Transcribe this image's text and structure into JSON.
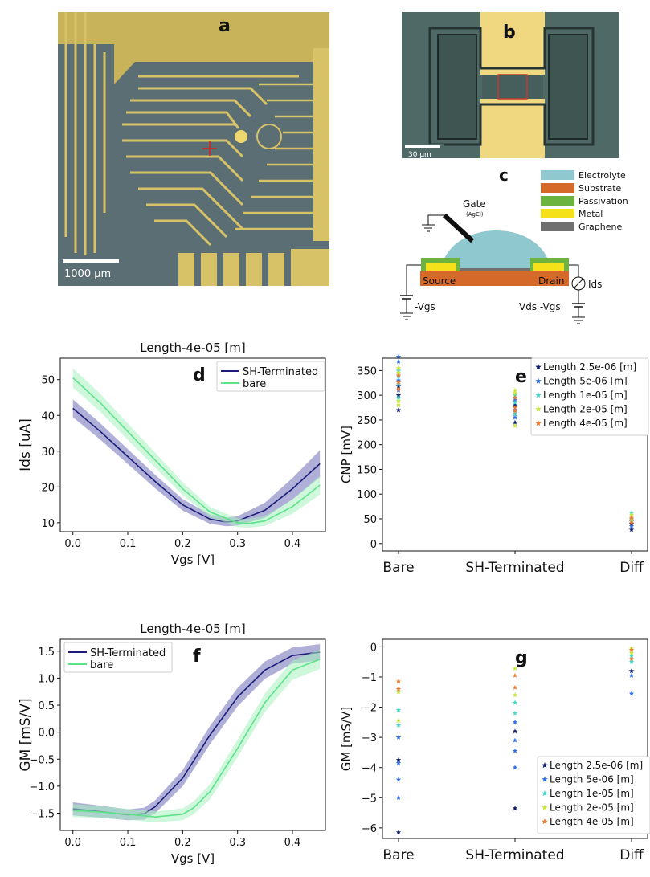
{
  "panels": {
    "a": {
      "letter": "a",
      "scale_bar": "1000 µm"
    },
    "b": {
      "letter": "b",
      "scale_bar": "30 µm"
    },
    "c": {
      "letter": "c",
      "gate_label": "Gate",
      "gate_sub": "(AgCl)",
      "source_label": "Source",
      "drain_label": "Drain",
      "ids_label": "Ids",
      "vgs_label": "-Vgs",
      "vds_label": "Vds -Vgs",
      "legend": [
        {
          "label": "Electrolyte",
          "color": "#8fc9cf"
        },
        {
          "label": "Substrate",
          "color": "#d4692a"
        },
        {
          "label": "Passivation",
          "color": "#6db33f"
        },
        {
          "label": "Metal",
          "color": "#f5e11a"
        },
        {
          "label": "Graphene",
          "color": "#707070"
        }
      ]
    }
  },
  "chart_data": [
    {
      "id": "d",
      "type": "line",
      "letter": "d",
      "title": "Length-4e-05 [m]",
      "xlabel": "Vgs [V]",
      "ylabel": "Ids [uA]",
      "xlim": [
        -0.023,
        0.46
      ],
      "ylim": [
        7.5,
        56
      ],
      "xticks": [
        "0.0",
        "0.1",
        "0.2",
        "0.3",
        "0.4"
      ],
      "xtick_values": [
        0,
        0.1,
        0.2,
        0.3,
        0.4
      ],
      "yticks": [
        "10",
        "20",
        "30",
        "40",
        "50"
      ],
      "ytick_values": [
        10,
        20,
        30,
        40,
        50
      ],
      "legend": "top-right",
      "series": [
        {
          "name": "SH-Terminated",
          "color": "#1c1c7a",
          "fill": "#6e6eb8",
          "x": [
            0,
            0.05,
            0.1,
            0.15,
            0.2,
            0.25,
            0.28,
            0.3,
            0.35,
            0.4,
            0.45
          ],
          "y": [
            42,
            35.5,
            28.5,
            21.5,
            15,
            11,
            10.2,
            10.5,
            13.5,
            19.5,
            26.5
          ],
          "band": [
            2.5,
            2.3,
            2.1,
            1.9,
            1.6,
            1.3,
            1.2,
            1.3,
            2.1,
            3.0,
            3.8
          ]
        },
        {
          "name": "bare",
          "color": "#5fe38a",
          "fill": "#a6f0bd",
          "x": [
            0,
            0.05,
            0.1,
            0.15,
            0.2,
            0.25,
            0.3,
            0.32,
            0.35,
            0.4,
            0.45
          ],
          "y": [
            50.5,
            43.5,
            35.5,
            27.5,
            19.5,
            13,
            10,
            9.8,
            10.5,
            14.5,
            20.5
          ],
          "band": [
            2.7,
            2.5,
            2.3,
            2.1,
            1.8,
            1.4,
            1.2,
            1.2,
            1.4,
            2.0,
            2.6
          ]
        }
      ]
    },
    {
      "id": "e",
      "type": "scatter",
      "letter": "e",
      "ylabel": "CNP [mV]",
      "categories": [
        "Bare",
        "SH-Terminated",
        "Diff"
      ],
      "ylim": [
        -15,
        375
      ],
      "yticks": [
        "0",
        "50",
        "100",
        "150",
        "200",
        "250",
        "300",
        "350"
      ],
      "ytick_values": [
        0,
        50,
        100,
        150,
        200,
        250,
        300,
        350
      ],
      "legend": "top-right",
      "series": [
        {
          "name": "Length 2.5e-06 [m]",
          "color": "#0b1a6e",
          "points": [
            [
              0,
              270
            ],
            [
              0,
              300
            ],
            [
              0,
              318
            ],
            [
              1,
              245
            ],
            [
              1,
              262
            ],
            [
              1,
              280
            ],
            [
              2,
              28
            ],
            [
              2,
              40
            ]
          ]
        },
        {
          "name": "Length 5e-06 [m]",
          "color": "#2f6fe6",
          "points": [
            [
              0,
              378
            ],
            [
              0,
              368
            ],
            [
              0,
              330
            ],
            [
              0,
              310
            ],
            [
              1,
              255
            ],
            [
              1,
              270
            ],
            [
              1,
              290
            ],
            [
              2,
              45
            ],
            [
              2,
              35
            ]
          ]
        },
        {
          "name": "Length 1e-05 [m]",
          "color": "#3fd6c6",
          "points": [
            [
              0,
              350
            ],
            [
              0,
              338
            ],
            [
              0,
              322
            ],
            [
              0,
              295
            ],
            [
              1,
              300
            ],
            [
              1,
              285
            ],
            [
              1,
              262
            ],
            [
              2,
              62
            ],
            [
              2,
              50
            ]
          ]
        },
        {
          "name": "Length 2e-05 [m]",
          "color": "#c3e83a",
          "points": [
            [
              0,
              355
            ],
            [
              0,
              346
            ],
            [
              0,
              288
            ],
            [
              0,
              280
            ],
            [
              1,
              310
            ],
            [
              1,
              304
            ],
            [
              1,
              238
            ],
            [
              2,
              58
            ],
            [
              2,
              48
            ]
          ]
        },
        {
          "name": "Length 4e-05 [m]",
          "color": "#f2782e",
          "points": [
            [
              0,
              340
            ],
            [
              0,
              326
            ],
            [
              0,
              312
            ],
            [
              1,
              275
            ],
            [
              1,
              295
            ],
            [
              1,
              268
            ],
            [
              2,
              52
            ],
            [
              2,
              42
            ]
          ]
        }
      ]
    },
    {
      "id": "f",
      "type": "line",
      "letter": "f",
      "title": "Length-4e-05 [m]",
      "xlabel": "Vgs [V]",
      "ylabel": "GM [mS/V]",
      "xlim": [
        -0.023,
        0.46
      ],
      "ylim": [
        -1.82,
        1.72
      ],
      "xticks": [
        "0.0",
        "0.1",
        "0.2",
        "0.3",
        "0.4"
      ],
      "xtick_values": [
        0,
        0.1,
        0.2,
        0.3,
        0.4
      ],
      "yticks": [
        "−1.5",
        "−1.0",
        "−0.5",
        "0.0",
        "0.5",
        "1.0",
        "1.5"
      ],
      "ytick_values": [
        -1.5,
        -1.0,
        -0.5,
        0.0,
        0.5,
        1.0,
        1.5
      ],
      "legend": "top-left",
      "series": [
        {
          "name": "SH-Terminated",
          "color": "#1c1c7a",
          "fill": "#6e6eb8",
          "x": [
            0,
            0.05,
            0.1,
            0.13,
            0.15,
            0.2,
            0.25,
            0.3,
            0.35,
            0.4,
            0.45
          ],
          "y": [
            -1.42,
            -1.47,
            -1.53,
            -1.51,
            -1.38,
            -0.85,
            -0.05,
            0.65,
            1.15,
            1.42,
            1.48
          ],
          "band": [
            0.12,
            0.11,
            0.1,
            0.11,
            0.12,
            0.15,
            0.17,
            0.17,
            0.16,
            0.15,
            0.15
          ]
        },
        {
          "name": "bare",
          "color": "#5fe38a",
          "fill": "#a6f0bd",
          "x": [
            0,
            0.05,
            0.1,
            0.15,
            0.2,
            0.22,
            0.25,
            0.3,
            0.35,
            0.4,
            0.45
          ],
          "y": [
            -1.45,
            -1.48,
            -1.52,
            -1.57,
            -1.52,
            -1.4,
            -1.1,
            -0.3,
            0.55,
            1.15,
            1.35
          ],
          "band": [
            0.12,
            0.11,
            0.1,
            0.1,
            0.11,
            0.12,
            0.14,
            0.16,
            0.17,
            0.18,
            0.18
          ]
        }
      ]
    },
    {
      "id": "g",
      "type": "scatter",
      "letter": "g",
      "ylabel": "GM [mS/V]",
      "categories": [
        "Bare",
        "SH-Terminated",
        "Diff"
      ],
      "ylim": [
        -6.35,
        0.25
      ],
      "yticks": [
        "0",
        "−1",
        "−2",
        "−3",
        "−4",
        "−5",
        "−6"
      ],
      "ytick_values": [
        0,
        -1,
        -2,
        -3,
        -4,
        -5,
        -6
      ],
      "legend": "bottom-right",
      "series": [
        {
          "name": "Length 2.5e-06 [m]",
          "color": "#0b1a6e",
          "points": [
            [
              0,
              -6.15
            ],
            [
              0,
              -3.75
            ],
            [
              1,
              -5.35
            ],
            [
              1,
              -2.8
            ],
            [
              2,
              -0.8
            ]
          ]
        },
        {
          "name": "Length 5e-06 [m]",
          "color": "#2f6fe6",
          "points": [
            [
              0,
              -5.0
            ],
            [
              0,
              -4.4
            ],
            [
              0,
              -3.85
            ],
            [
              0,
              -3.0
            ],
            [
              1,
              -4.0
            ],
            [
              1,
              -3.45
            ],
            [
              1,
              -3.1
            ],
            [
              1,
              -2.5
            ],
            [
              2,
              -1.55
            ],
            [
              2,
              -0.95
            ]
          ]
        },
        {
          "name": "Length 1e-05 [m]",
          "color": "#3fd6c6",
          "points": [
            [
              0,
              -2.6
            ],
            [
              0,
              -2.1
            ],
            [
              1,
              -2.2
            ],
            [
              1,
              -1.85
            ],
            [
              2,
              -0.5
            ],
            [
              2,
              -0.3
            ]
          ]
        },
        {
          "name": "Length 2e-05 [m]",
          "color": "#c3e83a",
          "points": [
            [
              0,
              -2.45
            ],
            [
              0,
              -1.5
            ],
            [
              1,
              -0.72
            ],
            [
              1,
              -1.6
            ],
            [
              2,
              -0.05
            ],
            [
              2,
              -0.2
            ]
          ]
        },
        {
          "name": "Length 4e-05 [m]",
          "color": "#f2782e",
          "points": [
            [
              0,
              -1.15
            ],
            [
              0,
              -1.4
            ],
            [
              1,
              -0.95
            ],
            [
              1,
              -1.35
            ],
            [
              2,
              -0.1
            ],
            [
              2,
              -0.4
            ]
          ]
        }
      ]
    }
  ]
}
